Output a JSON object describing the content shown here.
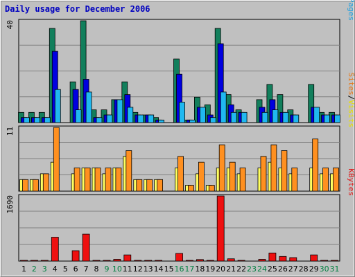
{
  "chart_data": {
    "type": "bar",
    "title": "Daily usage for December 2006",
    "days": [
      "1",
      "2",
      "3",
      "4",
      "5",
      "6",
      "7",
      "8",
      "9",
      "10",
      "11",
      "12",
      "13",
      "14",
      "15",
      "16",
      "17",
      "18",
      "19",
      "20",
      "21",
      "22",
      "23",
      "24",
      "25",
      "26",
      "27",
      "28",
      "29",
      "30",
      "31"
    ],
    "weekend_days": [
      "2",
      "3",
      "9",
      "10",
      "16",
      "17",
      "23",
      "24",
      "30",
      "31"
    ],
    "day_color": "#000000",
    "weekend_color": "#008040",
    "panels": [
      {
        "id": "hits-files-pages",
        "max_label": "40",
        "ymax": 40,
        "series_labels": [
          {
            "text": "Hits",
            "color": "#007050"
          },
          {
            "text": "/",
            "color": "#000000"
          },
          {
            "text": "Files",
            "color": "#0000c0"
          },
          {
            "text": "/",
            "color": "#000000"
          },
          {
            "text": "Pages",
            "color": "#20a0e0"
          }
        ],
        "series": [
          {
            "key": "hits",
            "color": "#127f5c",
            "values": [
              4,
              4,
              4,
              37,
              0,
              16,
              40,
              5,
              5,
              9,
              16,
              4,
              3,
              2,
              0,
              25,
              1,
              10,
              7,
              37,
              11,
              5,
              0,
              9,
              15,
              11,
              5,
              0,
              15,
              4,
              4
            ]
          },
          {
            "key": "files",
            "color": "#0000e0",
            "values": [
              2,
              2,
              2,
              28,
              0,
              13,
              17,
              2,
              3,
              9,
              11,
              3,
              3,
              1,
              0,
              19,
              1,
              6,
              3,
              31,
              7,
              4,
              0,
              6,
              9,
              4,
              3,
              0,
              6,
              3,
              3
            ]
          },
          {
            "key": "pages",
            "color": "#20b8f0",
            "values": [
              2,
              2,
              2,
              13,
              0,
              5,
              12,
              2,
              3,
              9,
              6,
              3,
              3,
              1,
              0,
              8,
              1,
              6,
              2,
              12,
              4,
              4,
              0,
              4,
              5,
              4,
              3,
              0,
              6,
              3,
              3
            ]
          }
        ]
      },
      {
        "id": "visits-sites",
        "max_label": "11",
        "ymax": 11,
        "series_labels": [
          {
            "text": "Sites",
            "color": "#e87818"
          },
          {
            "text": "/",
            "color": "#000000"
          },
          {
            "text": "Visits",
            "color": "#e8e000"
          }
        ],
        "series": [
          {
            "key": "visits",
            "color": "#ffff60",
            "values": [
              2,
              2,
              3,
              5,
              0,
              3,
              4,
              4,
              3,
              4,
              6,
              2,
              2,
              2,
              0,
              4,
              1,
              3,
              1,
              4,
              4,
              3,
              0,
              4,
              5,
              4,
              3,
              0,
              4,
              3,
              3
            ]
          },
          {
            "key": "sites",
            "color": "#ff9020",
            "values": [
              2,
              2,
              3,
              11,
              0,
              4,
              4,
              4,
              4,
              4,
              7,
              2,
              2,
              2,
              0,
              6,
              1,
              5,
              1,
              8,
              5,
              4,
              0,
              6,
              8,
              7,
              4,
              0,
              9,
              4,
              4
            ]
          }
        ]
      },
      {
        "id": "kbytes",
        "max_label": "1690",
        "ymax": 1690,
        "series_labels": [
          {
            "text": "KBytes",
            "color": "#e01818"
          }
        ],
        "series": [
          {
            "key": "kbytes",
            "color": "#ee1010",
            "values": [
              20,
              20,
              20,
              620,
              0,
              270,
              700,
              20,
              20,
              45,
              160,
              20,
              20,
              20,
              0,
              200,
              20,
              40,
              20,
              1690,
              60,
              20,
              0,
              45,
              210,
              120,
              90,
              0,
              160,
              20,
              20
            ]
          }
        ]
      }
    ]
  }
}
